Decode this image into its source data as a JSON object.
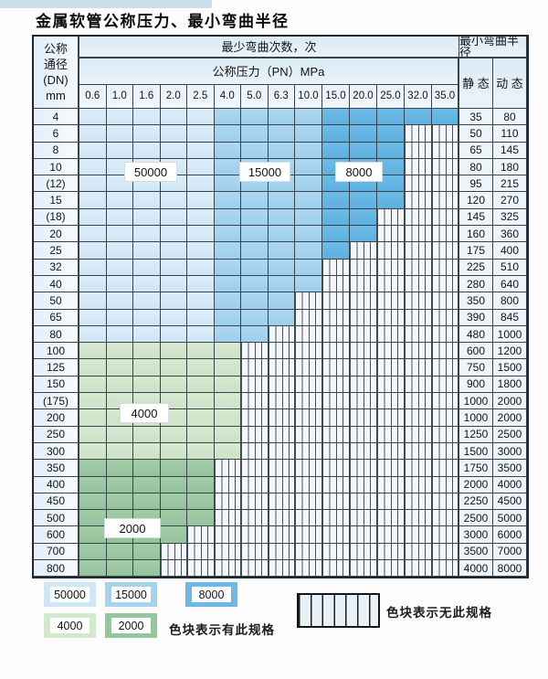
{
  "title": "金属软管公称压力、最小弯曲半径",
  "table": {
    "header": {
      "dn_lines": [
        "公称",
        "通径",
        "(DN)",
        "mm"
      ],
      "bend_cycles": "最少弯曲次数，次",
      "pressure": "公称压力（PN）MPa",
      "min_radius": "最小弯曲半径",
      "static": "静 态",
      "dynamic": "动 态",
      "pn_values": [
        "0.6",
        "1.0",
        "1.6",
        "2.0",
        "2.5",
        "4.0",
        "5.0",
        "6.3",
        "10.0",
        "15.0",
        "20.0",
        "25.0",
        "32.0",
        "35.0"
      ]
    },
    "rows": [
      {
        "dn": "4",
        "bands": [
          [
            "50000",
            5
          ],
          [
            "15000",
            4
          ],
          [
            "8000",
            5
          ]
        ],
        "static": "35",
        "dynamic": "80"
      },
      {
        "dn": "6",
        "bands": [
          [
            "50000",
            5
          ],
          [
            "15000",
            4
          ],
          [
            "8000",
            3
          ]
        ],
        "static": "50",
        "dynamic": "110"
      },
      {
        "dn": "8",
        "bands": [
          [
            "50000",
            5
          ],
          [
            "15000",
            4
          ],
          [
            "8000",
            3
          ]
        ],
        "static": "65",
        "dynamic": "145"
      },
      {
        "dn": "10",
        "bands": [
          [
            "50000",
            5
          ],
          [
            "15000",
            4
          ],
          [
            "8000",
            3
          ]
        ],
        "static": "80",
        "dynamic": "180"
      },
      {
        "dn": "(12)",
        "bands": [
          [
            "50000",
            5
          ],
          [
            "15000",
            4
          ],
          [
            "8000",
            3
          ]
        ],
        "static": "95",
        "dynamic": "215"
      },
      {
        "dn": "15",
        "bands": [
          [
            "50000",
            5
          ],
          [
            "15000",
            4
          ],
          [
            "8000",
            3
          ]
        ],
        "static": "120",
        "dynamic": "270"
      },
      {
        "dn": "(18)",
        "bands": [
          [
            "50000",
            5
          ],
          [
            "15000",
            4
          ],
          [
            "8000",
            2
          ]
        ],
        "static": "145",
        "dynamic": "325"
      },
      {
        "dn": "20",
        "bands": [
          [
            "50000",
            5
          ],
          [
            "15000",
            4
          ],
          [
            "8000",
            2
          ]
        ],
        "static": "160",
        "dynamic": "360"
      },
      {
        "dn": "25",
        "bands": [
          [
            "50000",
            5
          ],
          [
            "15000",
            4
          ],
          [
            "8000",
            1
          ]
        ],
        "static": "175",
        "dynamic": "400"
      },
      {
        "dn": "32",
        "bands": [
          [
            "50000",
            5
          ],
          [
            "15000",
            4
          ]
        ],
        "static": "225",
        "dynamic": "510"
      },
      {
        "dn": "40",
        "bands": [
          [
            "50000",
            5
          ],
          [
            "15000",
            4
          ]
        ],
        "static": "280",
        "dynamic": "640"
      },
      {
        "dn": "50",
        "bands": [
          [
            "50000",
            5
          ],
          [
            "15000",
            3
          ]
        ],
        "static": "350",
        "dynamic": "800"
      },
      {
        "dn": "65",
        "bands": [
          [
            "50000",
            5
          ],
          [
            "15000",
            3
          ]
        ],
        "static": "390",
        "dynamic": "845"
      },
      {
        "dn": "80",
        "bands": [
          [
            "50000",
            5
          ],
          [
            "15000",
            2
          ]
        ],
        "static": "480",
        "dynamic": "1000"
      },
      {
        "dn": "100",
        "bands": [
          [
            "4000",
            6
          ]
        ],
        "static": "600",
        "dynamic": "1200"
      },
      {
        "dn": "125",
        "bands": [
          [
            "4000",
            6
          ]
        ],
        "static": "750",
        "dynamic": "1500"
      },
      {
        "dn": "150",
        "bands": [
          [
            "4000",
            6
          ]
        ],
        "static": "900",
        "dynamic": "1800"
      },
      {
        "dn": "(175)",
        "bands": [
          [
            "4000",
            6
          ]
        ],
        "static": "1000",
        "dynamic": "2000"
      },
      {
        "dn": "200",
        "bands": [
          [
            "4000",
            6
          ]
        ],
        "static": "1000",
        "dynamic": "2000"
      },
      {
        "dn": "250",
        "bands": [
          [
            "4000",
            6
          ]
        ],
        "static": "1250",
        "dynamic": "2500"
      },
      {
        "dn": "300",
        "bands": [
          [
            "4000",
            6
          ]
        ],
        "static": "1500",
        "dynamic": "3000"
      },
      {
        "dn": "350",
        "bands": [
          [
            "2000",
            5
          ]
        ],
        "static": "1750",
        "dynamic": "3500"
      },
      {
        "dn": "400",
        "bands": [
          [
            "2000",
            5
          ]
        ],
        "static": "2000",
        "dynamic": "4000"
      },
      {
        "dn": "450",
        "bands": [
          [
            "2000",
            5
          ]
        ],
        "static": "2250",
        "dynamic": "4500"
      },
      {
        "dn": "500",
        "bands": [
          [
            "2000",
            5
          ]
        ],
        "static": "2500",
        "dynamic": "5000"
      },
      {
        "dn": "600",
        "bands": [
          [
            "2000",
            4
          ]
        ],
        "static": "3000",
        "dynamic": "6000"
      },
      {
        "dn": "700",
        "bands": [
          [
            "2000",
            3
          ]
        ],
        "static": "3500",
        "dynamic": "7000"
      },
      {
        "dn": "800",
        "bands": [
          [
            "2000",
            3
          ]
        ],
        "static": "4000",
        "dynamic": "8000"
      }
    ],
    "overlay_labels": [
      "50000",
      "15000",
      "8000",
      "4000",
      "2000"
    ]
  },
  "zone_colors": {
    "50000": "#d6e9f7",
    "15000": "#a6d3ee",
    "8000": "#64b5e4",
    "4000": "#d3e6cc",
    "2000": "#9ac8a0",
    "grid_line": "#39434b"
  },
  "legend": {
    "has_spec": [
      {
        "label": "50000",
        "color": "#cfe6f7"
      },
      {
        "label": "15000",
        "color": "#a5d2ee"
      },
      {
        "label": "8000",
        "color": "#6cb9e7"
      },
      {
        "label": "4000",
        "color": "#d4e7cf"
      },
      {
        "label": "2000",
        "color": "#94c79d"
      }
    ],
    "has_spec_text": "色块表示有此规格",
    "no_spec_text": "色块表示无此规格"
  }
}
